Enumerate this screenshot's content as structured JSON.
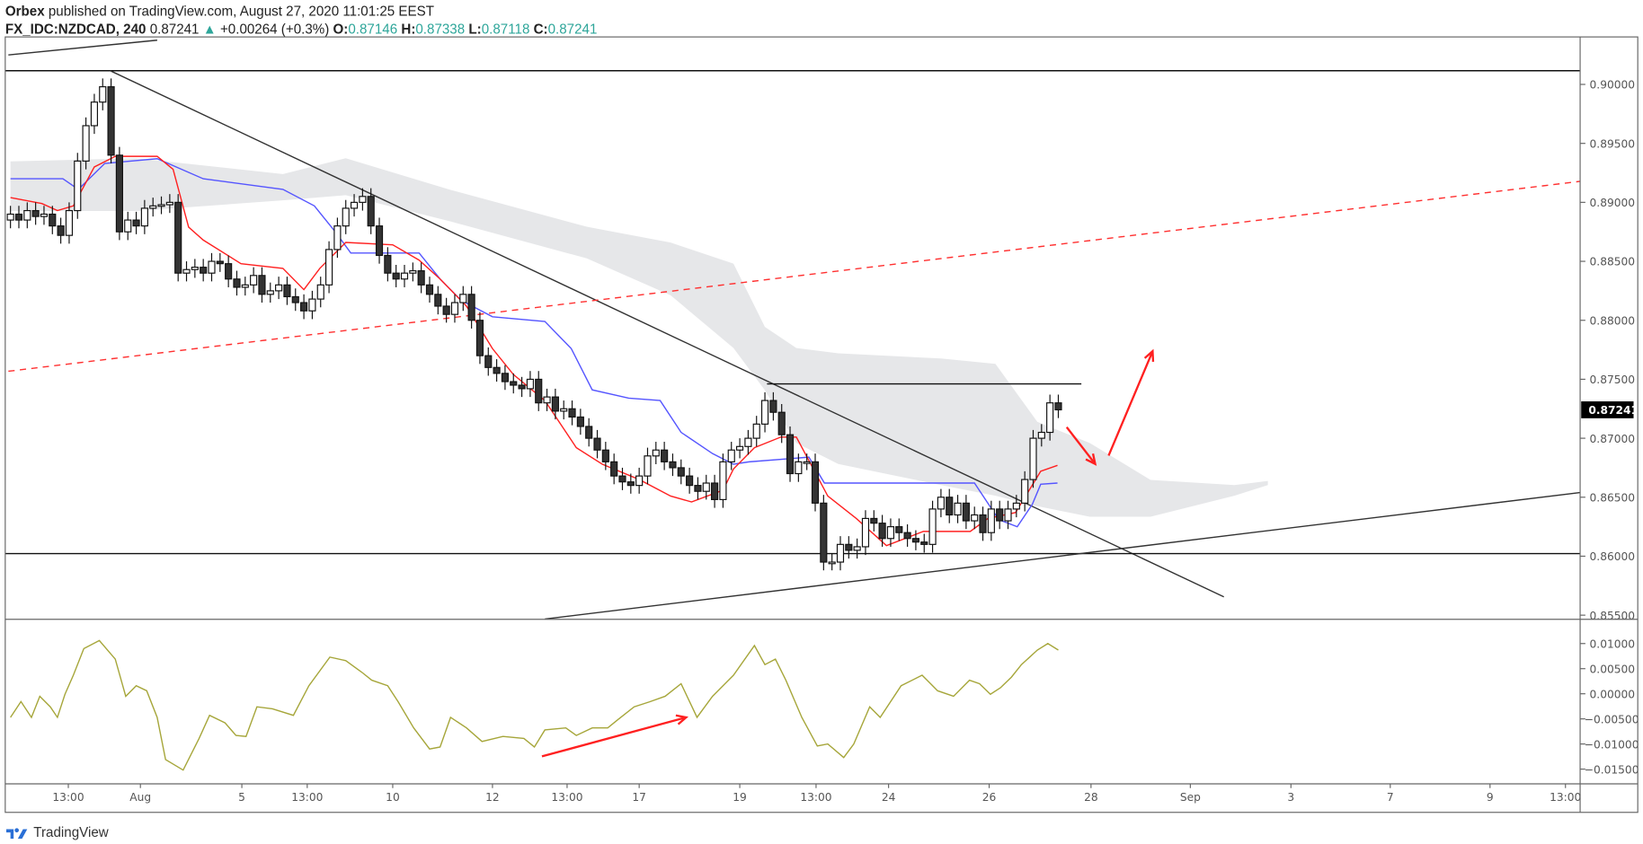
{
  "header": {
    "publisher": "Orbex",
    "published_text": "published on TradingView.com, August 27, 2020 11:01:25 EEST",
    "symbol": "FX_IDC:NZDCAD, 240",
    "last": "0.87241",
    "change": "+0.00264 (+0.3%)",
    "o_label": "O:",
    "o": "0.87146",
    "h_label": "H:",
    "h": "0.87338",
    "l_label": "L:",
    "l": "0.87118",
    "c_label": "C:",
    "c": "0.87241",
    "up_icon": "triangle-up-icon"
  },
  "footer": {
    "brand": "TradingView",
    "logo_icon": "tradingview-logo-icon"
  },
  "colors": {
    "up_body": "#ffffff",
    "down_body": "#333333",
    "tenkan": "#ff2020",
    "kijun": "#5555ff",
    "cloud": "#e6e7e9",
    "indicator": "#a6a63a",
    "dashed_trend": "#ff3030",
    "accent": "#2ea69a"
  },
  "chart_data": [
    {
      "type": "candlestick",
      "price_ticks": [
        "0.90000",
        "0.89500",
        "0.89000",
        "0.88500",
        "0.88000",
        "0.87500",
        "0.87000",
        "0.86500",
        "0.86000",
        "0.85500"
      ],
      "ylim": [
        0.855,
        0.9
      ],
      "current_price_label": "0.87241",
      "time_ticks": [
        {
          "label": "13:00",
          "bar": 6.9
        },
        {
          "label": "Aug",
          "bar": 15.5
        },
        {
          "label": "5",
          "bar": 27.6
        },
        {
          "label": "13:00",
          "bar": 35.4
        },
        {
          "label": "10",
          "bar": 45.6
        },
        {
          "label": "12",
          "bar": 57.5
        },
        {
          "label": "13:00",
          "bar": 66.4
        },
        {
          "label": "17",
          "bar": 75
        },
        {
          "label": "19",
          "bar": 87
        },
        {
          "label": "13:00",
          "bar": 96.1
        },
        {
          "label": "24",
          "bar": 104.75
        },
        {
          "label": "26",
          "bar": 116.75
        },
        {
          "label": "28",
          "bar": 128.9
        },
        {
          "label": "Sep",
          "bar": 140.75
        },
        {
          "label": "3",
          "bar": 152.75
        },
        {
          "label": "7",
          "bar": 164.6
        },
        {
          "label": "9",
          "bar": 176.5
        },
        {
          "label": "13:00",
          "bar": 185.5
        }
      ],
      "closes": [
        0.889,
        0.8885,
        0.8893,
        0.8888,
        0.889,
        0.888,
        0.8872,
        0.8893,
        0.8935,
        0.8965,
        0.8985,
        0.8998,
        0.894,
        0.8875,
        0.8885,
        0.888,
        0.8895,
        0.8897,
        0.8898,
        0.89,
        0.884,
        0.8843,
        0.8845,
        0.884,
        0.885,
        0.8848,
        0.8835,
        0.8828,
        0.883,
        0.8838,
        0.8822,
        0.8825,
        0.883,
        0.882,
        0.8815,
        0.8808,
        0.8818,
        0.883,
        0.886,
        0.888,
        0.8895,
        0.89,
        0.8905,
        0.888,
        0.8855,
        0.884,
        0.8835,
        0.884,
        0.8842,
        0.883,
        0.8822,
        0.8812,
        0.8805,
        0.8815,
        0.8822,
        0.88,
        0.877,
        0.876,
        0.8755,
        0.8748,
        0.8745,
        0.8742,
        0.875,
        0.873,
        0.8735,
        0.8723,
        0.8725,
        0.8718,
        0.871,
        0.87,
        0.869,
        0.868,
        0.8668,
        0.8663,
        0.866,
        0.8668,
        0.8685,
        0.869,
        0.868,
        0.8675,
        0.8668,
        0.866,
        0.8655,
        0.8662,
        0.8648,
        0.868,
        0.869,
        0.8693,
        0.87,
        0.8712,
        0.8732,
        0.8722,
        0.8703,
        0.867,
        0.868,
        0.868,
        0.8645,
        0.8595,
        0.8595,
        0.861,
        0.8605,
        0.8608,
        0.8632,
        0.8628,
        0.8615,
        0.8625,
        0.862,
        0.8615,
        0.8612,
        0.861,
        0.864,
        0.865,
        0.8635,
        0.8645,
        0.863,
        0.8635,
        0.862,
        0.864,
        0.863,
        0.864,
        0.8645,
        0.8665,
        0.87,
        0.8705,
        0.873,
        0.87241
      ],
      "first_open": 0.8885,
      "tenkan": [
        [
          0,
          0.8904
        ],
        [
          3.75,
          0.8899
        ],
        [
          5.6,
          0.8893
        ],
        [
          7.5,
          0.8897
        ],
        [
          10,
          0.893
        ],
        [
          12.5,
          0.8939
        ],
        [
          17.5,
          0.8939
        ],
        [
          19.4,
          0.8928
        ],
        [
          21.25,
          0.8879
        ],
        [
          23,
          0.8868
        ],
        [
          27.5,
          0.8848
        ],
        [
          32.5,
          0.8844
        ],
        [
          35,
          0.8826
        ],
        [
          36.9,
          0.8844
        ],
        [
          40,
          0.8866
        ],
        [
          45.6,
          0.8864
        ],
        [
          48.75,
          0.8851
        ],
        [
          51.25,
          0.8835
        ],
        [
          54.4,
          0.8812
        ],
        [
          57.5,
          0.8776
        ],
        [
          60,
          0.8754
        ],
        [
          63.75,
          0.8732
        ],
        [
          67.5,
          0.8692
        ],
        [
          70.6,
          0.8678
        ],
        [
          75,
          0.8665
        ],
        [
          78.75,
          0.8651
        ],
        [
          81.25,
          0.8646
        ],
        [
          85,
          0.8656
        ],
        [
          86.25,
          0.8674
        ],
        [
          88.75,
          0.8692
        ],
        [
          91.9,
          0.8701
        ],
        [
          93.75,
          0.8701
        ],
        [
          97.5,
          0.8651
        ],
        [
          100.9,
          0.8632
        ],
        [
          104.5,
          0.8609
        ],
        [
          108.9,
          0.8621
        ],
        [
          114.5,
          0.8621
        ],
        [
          116.6,
          0.8632
        ],
        [
          119.9,
          0.8637
        ],
        [
          122.9,
          0.8672
        ],
        [
          124.9,
          0.8677
        ]
      ],
      "kijun": [
        [
          0,
          0.892
        ],
        [
          6.25,
          0.892
        ],
        [
          8.1,
          0.8911
        ],
        [
          11.25,
          0.8933
        ],
        [
          17.5,
          0.8937
        ],
        [
          23,
          0.892
        ],
        [
          32.5,
          0.8911
        ],
        [
          36.25,
          0.8897
        ],
        [
          38.75,
          0.8875
        ],
        [
          40.6,
          0.8857
        ],
        [
          48.75,
          0.8857
        ],
        [
          51.25,
          0.8835
        ],
        [
          53.75,
          0.8817
        ],
        [
          57.5,
          0.8803
        ],
        [
          63.75,
          0.8799
        ],
        [
          66.9,
          0.8776
        ],
        [
          69.4,
          0.8741
        ],
        [
          73.75,
          0.8734
        ],
        [
          77.5,
          0.8732
        ],
        [
          80,
          0.8705
        ],
        [
          83.75,
          0.8687
        ],
        [
          86.25,
          0.8678
        ],
        [
          88.1,
          0.868
        ],
        [
          95.25,
          0.8684
        ],
        [
          97.1,
          0.8662
        ],
        [
          115,
          0.8662
        ],
        [
          117.9,
          0.8631
        ],
        [
          120.1,
          0.8625
        ],
        [
          121.9,
          0.8644
        ],
        [
          122.9,
          0.8661
        ],
        [
          124.9,
          0.8662
        ]
      ],
      "cloud": [
        [
          0,
          0.89347,
          0.88927
        ],
        [
          15,
          0.89374,
          0.88927
        ],
        [
          32.5,
          0.8924,
          0.89017
        ],
        [
          40,
          0.89374,
          0.89061
        ],
        [
          52.5,
          0.89106,
          0.88838
        ],
        [
          68.75,
          0.88793,
          0.88525
        ],
        [
          78.75,
          0.88659,
          0.88212
        ],
        [
          86.25,
          0.8848,
          0.87765
        ],
        [
          90,
          0.87944,
          0.87407
        ],
        [
          93.75,
          0.87765,
          0.8696
        ],
        [
          98.75,
          0.8772,
          0.86782
        ],
        [
          111,
          0.87676,
          0.86603
        ],
        [
          117.5,
          0.87631,
          0.86513
        ],
        [
          122.5,
          0.87139,
          0.86424
        ],
        [
          128.75,
          0.8696,
          0.86335
        ],
        [
          136,
          0.86647,
          0.86335
        ],
        [
          146,
          0.86603,
          0.86513
        ],
        [
          150,
          0.86638,
          0.86603
        ]
      ],
      "drawings": [
        {
          "kind": "trend",
          "color": "#333333",
          "from": [
            -0.25,
            0.9025
          ],
          "to": [
            17.5,
            0.90375
          ]
        },
        {
          "kind": "horizontal",
          "color": "#111111",
          "price": 0.90116
        },
        {
          "kind": "trend",
          "color": "#333333",
          "from": [
            11.9,
            0.90116
          ],
          "to": [
            144.75,
            0.85655
          ]
        },
        {
          "kind": "trend",
          "color": "#ff3030",
          "dashed": true,
          "from": [
            -0.25,
            0.87568
          ],
          "to": [
            187.25,
            0.89178
          ]
        },
        {
          "kind": "trend",
          "color": "#111111",
          "from": [
            90.25,
            0.87461
          ],
          "to": [
            127.75,
            0.87461
          ]
        },
        {
          "kind": "horizontal",
          "color": "#111111",
          "price": 0.86022
        },
        {
          "kind": "trend",
          "color": "#333333",
          "from": [
            63.75,
            0.85467
          ],
          "to": [
            187.25,
            0.8654
          ]
        },
        {
          "kind": "arrow",
          "color": "#ff2020",
          "from": [
            126,
            0.87094
          ],
          "to": [
            129.4,
            0.86782
          ]
        },
        {
          "kind": "arrow",
          "color": "#ff2020",
          "from": [
            131,
            0.86853
          ],
          "to": [
            136.25,
            0.87738
          ]
        }
      ]
    },
    {
      "type": "line",
      "ticks": [
        "0.01000",
        "0.00500",
        "0.00000",
        "-0.00500",
        "-0.01000",
        "-0.01500"
      ],
      "ylim": [
        -0.015,
        0.01
      ],
      "series": [
        [
          0,
          -0.0047
        ],
        [
          1.25,
          -0.00155
        ],
        [
          2.5,
          -0.0047
        ],
        [
          3.5,
          -0.0005
        ],
        [
          4.75,
          -0.0026
        ],
        [
          5.6,
          -0.0047
        ],
        [
          6.5,
          -0.0001
        ],
        [
          7.5,
          0.0037
        ],
        [
          8.75,
          0.009
        ],
        [
          10.6,
          0.0106
        ],
        [
          12.5,
          0.0069
        ],
        [
          13.75,
          -0.0005
        ],
        [
          15,
          0.0016
        ],
        [
          16.25,
          0.0006
        ],
        [
          17.5,
          -0.0047
        ],
        [
          18.5,
          -0.0131
        ],
        [
          20.6,
          -0.0152
        ],
        [
          22.5,
          -0.0089
        ],
        [
          23.75,
          -0.0043
        ],
        [
          25.6,
          -0.0058
        ],
        [
          26.9,
          -0.0083
        ],
        [
          28.1,
          -0.0085
        ],
        [
          29.4,
          -0.0026
        ],
        [
          31.25,
          -0.003
        ],
        [
          33.75,
          -0.0043
        ],
        [
          35.6,
          0.0016
        ],
        [
          38.1,
          0.0073
        ],
        [
          40,
          0.0066
        ],
        [
          41.9,
          0.0043
        ],
        [
          43.1,
          0.0027
        ],
        [
          45,
          0.0016
        ],
        [
          46.25,
          -0.0016
        ],
        [
          48.1,
          -0.0068
        ],
        [
          50,
          -0.011
        ],
        [
          51.25,
          -0.0106
        ],
        [
          52.5,
          -0.0047
        ],
        [
          54.4,
          -0.0068
        ],
        [
          56.25,
          -0.0095
        ],
        [
          58.75,
          -0.0085
        ],
        [
          61.25,
          -0.0089
        ],
        [
          62.5,
          -0.0106
        ],
        [
          63.75,
          -0.0072
        ],
        [
          66.25,
          -0.0068
        ],
        [
          67.5,
          -0.0083
        ],
        [
          69.4,
          -0.0068
        ],
        [
          71.25,
          -0.0068
        ],
        [
          72.5,
          -0.0051
        ],
        [
          74.4,
          -0.0026
        ],
        [
          76.25,
          -0.0016
        ],
        [
          78.1,
          -0.0005
        ],
        [
          80,
          0.002
        ],
        [
          81.9,
          -0.0047
        ],
        [
          83.75,
          -0.0005
        ],
        [
          86.25,
          0.0037
        ],
        [
          88.75,
          0.0096
        ],
        [
          90,
          0.0058
        ],
        [
          91.25,
          0.0069
        ],
        [
          92.5,
          0.0027
        ],
        [
          94.4,
          -0.0047
        ],
        [
          96.25,
          -0.0104
        ],
        [
          97.5,
          -0.01
        ],
        [
          99.4,
          -0.0127
        ],
        [
          100.6,
          -0.01
        ],
        [
          102.5,
          -0.0026
        ],
        [
          103.75,
          -0.0047
        ],
        [
          106.25,
          0.0016
        ],
        [
          108.75,
          0.0037
        ],
        [
          110.6,
          0.0006
        ],
        [
          112.5,
          -0.0005
        ],
        [
          114.4,
          0.0027
        ],
        [
          115.6,
          0.002
        ],
        [
          116.9,
          -0.0001
        ],
        [
          118.1,
          0.0012
        ],
        [
          119.4,
          0.0033
        ],
        [
          120.6,
          0.0058
        ],
        [
          122.5,
          0.0087
        ],
        [
          123.75,
          0.01
        ],
        [
          125,
          0.0087
        ]
      ],
      "arrow": {
        "color": "#ff2020",
        "from": [
          63.4,
          -0.01247
        ],
        "to": [
          80.6,
          -0.0047
        ]
      }
    }
  ]
}
